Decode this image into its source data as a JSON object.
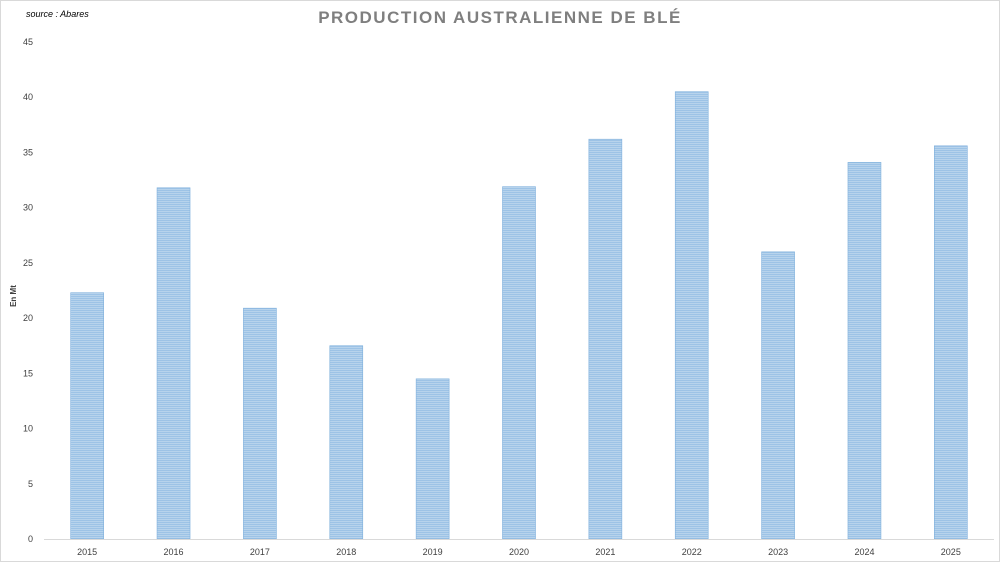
{
  "source_note": "source : Abares",
  "chart_data": {
    "type": "bar",
    "title": "PRODUCTION AUSTRALIENNE DE BLÉ",
    "xlabel": "",
    "ylabel": "En Mt",
    "categories": [
      "2015",
      "2016",
      "2017",
      "2018",
      "2019",
      "2020",
      "2021",
      "2022",
      "2023",
      "2024",
      "2025"
    ],
    "values": [
      22.3,
      31.8,
      20.9,
      17.5,
      14.5,
      31.9,
      36.2,
      40.5,
      26.0,
      34.1,
      35.6
    ],
    "ylim": [
      0,
      45
    ],
    "yticks": [
      0,
      5,
      10,
      15,
      20,
      25,
      30,
      35,
      40,
      45
    ],
    "grid": false,
    "legend": "none",
    "colors": {
      "bar_fill": "#9dc3e6",
      "bar_stripe": "#bdd7ee",
      "bar_edge": "#7fb0dc",
      "title": "#7f7f7f",
      "axis": "#d9d9d9"
    }
  }
}
